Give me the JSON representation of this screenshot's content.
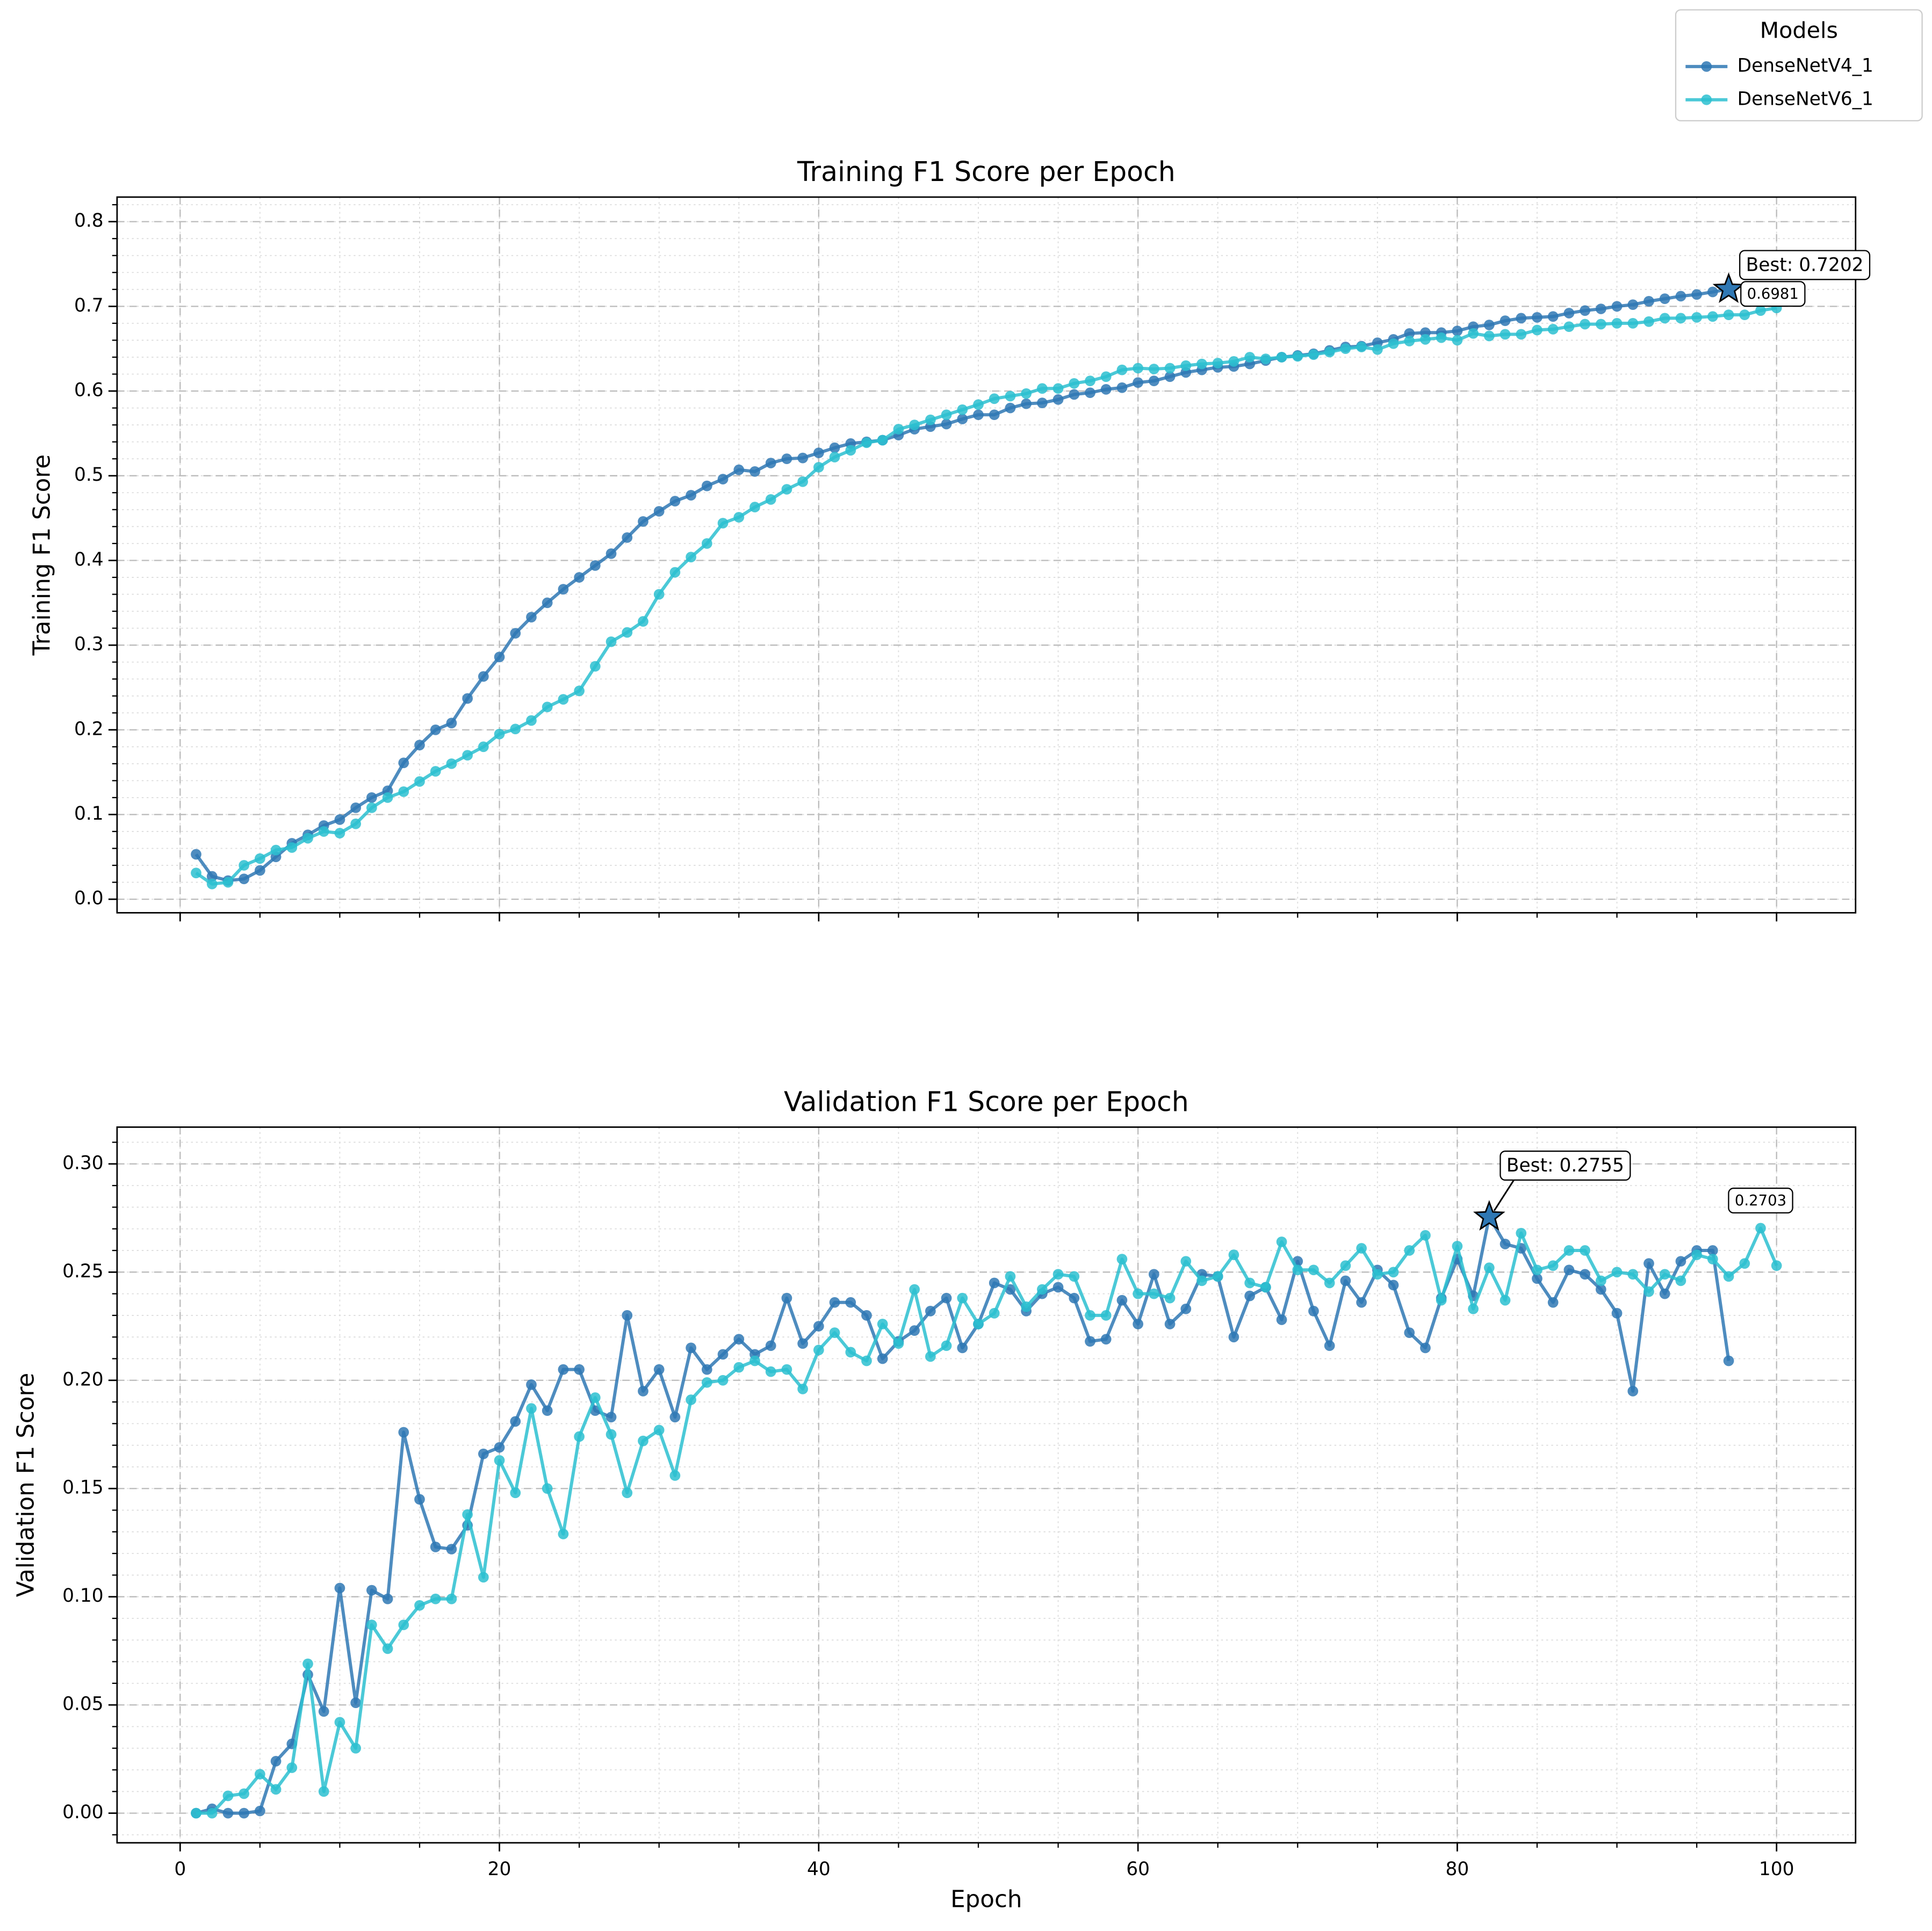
{
  "chart_data": [
    {
      "type": "line",
      "title": "Training F1 Score per Epoch",
      "ylabel": "Training F1 Score",
      "legend_title": "Models",
      "legend": "upper right",
      "show_xtick_labels": false,
      "xlim": [
        -3.95,
        104.95
      ],
      "xticks": [
        0,
        20,
        40,
        60,
        80,
        100
      ],
      "ylim": [
        -0.016,
        0.829
      ],
      "yticks": [
        {
          "value": 0,
          "label": "0.0"
        },
        0.1,
        0.2,
        0.3,
        0.4,
        0.5,
        0.6,
        0.7,
        0.8
      ],
      "grid": true,
      "minor_ticks": {
        "x": 5,
        "y": 0.02
      },
      "x": [
        1,
        2,
        3,
        4,
        5,
        6,
        7,
        8,
        9,
        10,
        11,
        12,
        13,
        14,
        15,
        16,
        17,
        18,
        19,
        20,
        21,
        22,
        23,
        24,
        25,
        26,
        27,
        28,
        29,
        30,
        31,
        32,
        33,
        34,
        35,
        36,
        37,
        38,
        39,
        40,
        41,
        42,
        43,
        44,
        45,
        46,
        47,
        48,
        49,
        50,
        51,
        52,
        53,
        54,
        55,
        56,
        57,
        58,
        59,
        60,
        61,
        62,
        63,
        64,
        65,
        66,
        67,
        68,
        69,
        70,
        71,
        72,
        73,
        74,
        75,
        76,
        77,
        78,
        79,
        80,
        81,
        82,
        83,
        84,
        85,
        86,
        87,
        88,
        89,
        90,
        91,
        92,
        93,
        94,
        95,
        96,
        97,
        98,
        99,
        100
      ],
      "series": [
        {
          "name": "DenseNetV4_1",
          "color": "#2f78b4",
          "values": [
            0.053,
            0.027,
            0.022,
            0.024,
            0.034,
            0.05,
            0.066,
            0.076,
            0.087,
            0.094,
            0.108,
            0.12,
            0.128,
            0.161,
            0.182,
            0.2,
            0.208,
            0.237,
            0.263,
            0.286,
            0.314,
            0.333,
            0.35,
            0.366,
            0.38,
            0.394,
            0.408,
            0.427,
            0.446,
            0.458,
            0.47,
            0.477,
            0.488,
            0.496,
            0.507,
            0.505,
            0.515,
            0.52,
            0.521,
            0.527,
            0.533,
            0.538,
            0.54,
            0.542,
            0.548,
            0.555,
            0.558,
            0.561,
            0.567,
            0.572,
            0.572,
            0.58,
            0.585,
            0.586,
            0.59,
            0.596,
            0.598,
            0.602,
            0.604,
            0.61,
            0.612,
            0.617,
            0.622,
            0.625,
            0.628,
            0.629,
            0.632,
            0.636,
            0.64,
            0.642,
            0.644,
            0.648,
            0.652,
            0.653,
            0.657,
            0.661,
            0.668,
            0.669,
            0.669,
            0.671,
            0.676,
            0.678,
            0.683,
            0.686,
            0.687,
            0.688,
            0.692,
            0.695,
            0.697,
            0.7,
            0.702,
            0.706,
            0.709,
            0.712,
            0.714,
            0.717,
            0.7202,
            null,
            null,
            null
          ]
        },
        {
          "name": "DenseNetV6_1",
          "color": "#2cbfd0",
          "values": [
            0.031,
            0.018,
            0.02,
            0.04,
            0.048,
            0.058,
            0.061,
            0.072,
            0.08,
            0.078,
            0.089,
            0.108,
            0.12,
            0.127,
            0.139,
            0.151,
            0.16,
            0.17,
            0.18,
            0.195,
            0.201,
            0.211,
            0.227,
            0.236,
            0.246,
            0.275,
            0.304,
            0.315,
            0.328,
            0.36,
            0.386,
            0.404,
            0.42,
            0.444,
            0.451,
            0.463,
            0.472,
            0.484,
            0.493,
            0.51,
            0.522,
            0.53,
            0.539,
            0.542,
            0.555,
            0.56,
            0.566,
            0.572,
            0.578,
            0.584,
            0.591,
            0.594,
            0.597,
            0.603,
            0.603,
            0.609,
            0.612,
            0.617,
            0.625,
            0.627,
            0.626,
            0.627,
            0.63,
            0.632,
            0.633,
            0.635,
            0.64,
            0.638,
            0.64,
            0.641,
            0.643,
            0.646,
            0.65,
            0.652,
            0.649,
            0.656,
            0.659,
            0.661,
            0.663,
            0.66,
            0.668,
            0.665,
            0.667,
            0.667,
            0.672,
            0.673,
            0.676,
            0.679,
            0.679,
            0.68,
            0.68,
            0.682,
            0.686,
            0.686,
            0.687,
            0.688,
            0.69,
            0.69,
            0.695,
            0.6981
          ]
        }
      ],
      "annotations": [
        {
          "text": "Best: 0.7202",
          "x": 97,
          "y": 0.7202,
          "marker": "star",
          "color": "#2f78b4"
        },
        {
          "text": "0.6981",
          "x": 100,
          "y": 0.6981
        }
      ]
    },
    {
      "type": "line",
      "title": "Validation F1 Score per Epoch",
      "xlabel": "Epoch",
      "ylabel": "Validation F1 Score",
      "xlim": [
        -3.95,
        104.95
      ],
      "xticks": [
        0,
        20,
        40,
        60,
        80,
        100
      ],
      "ylim": [
        -0.0137,
        0.317
      ],
      "yticks": [
        {
          "value": 0,
          "label": "0.00"
        },
        0.05,
        {
          "value": 0.1,
          "label": "0.10"
        },
        0.15,
        {
          "value": 0.2,
          "label": "0.20"
        },
        0.25,
        {
          "value": 0.3,
          "label": "0.30"
        }
      ],
      "grid": true,
      "minor_ticks": {
        "x": 5,
        "y": 0.01
      },
      "x": [
        1,
        2,
        3,
        4,
        5,
        6,
        7,
        8,
        9,
        10,
        11,
        12,
        13,
        14,
        15,
        16,
        17,
        18,
        19,
        20,
        21,
        22,
        23,
        24,
        25,
        26,
        27,
        28,
        29,
        30,
        31,
        32,
        33,
        34,
        35,
        36,
        37,
        38,
        39,
        40,
        41,
        42,
        43,
        44,
        45,
        46,
        47,
        48,
        49,
        50,
        51,
        52,
        53,
        54,
        55,
        56,
        57,
        58,
        59,
        60,
        61,
        62,
        63,
        64,
        65,
        66,
        67,
        68,
        69,
        70,
        71,
        72,
        73,
        74,
        75,
        76,
        77,
        78,
        79,
        80,
        81,
        82,
        83,
        84,
        85,
        86,
        87,
        88,
        89,
        90,
        91,
        92,
        93,
        94,
        95,
        96,
        97,
        98,
        99,
        100
      ],
      "series": [
        {
          "name": "DenseNetV4_1",
          "color": "#2f78b4",
          "values": [
            0,
            0.002,
            0,
            0,
            0.001,
            0.024,
            0.032,
            0.064,
            0.047,
            0.104,
            0.051,
            0.103,
            0.099,
            0.176,
            0.145,
            0.123,
            0.122,
            0.133,
            0.166,
            0.169,
            0.181,
            0.198,
            0.186,
            0.205,
            0.205,
            0.186,
            0.183,
            0.23,
            0.195,
            0.205,
            0.183,
            0.215,
            0.205,
            0.212,
            0.219,
            0.212,
            0.216,
            0.238,
            0.217,
            0.225,
            0.236,
            0.236,
            0.23,
            0.21,
            0.218,
            0.223,
            0.232,
            0.238,
            0.215,
            0.226,
            0.245,
            0.242,
            0.232,
            0.24,
            0.243,
            0.238,
            0.218,
            0.219,
            0.237,
            0.226,
            0.249,
            0.226,
            0.233,
            0.249,
            0.248,
            0.22,
            0.239,
            0.243,
            0.228,
            0.255,
            0.232,
            0.216,
            0.246,
            0.236,
            0.251,
            0.244,
            0.222,
            0.215,
            0.238,
            0.256,
            0.239,
            0.2755,
            0.263,
            0.261,
            0.247,
            0.236,
            0.251,
            0.249,
            0.242,
            0.231,
            0.195,
            0.254,
            0.24,
            0.255,
            0.26,
            0.26,
            0.209,
            null,
            null,
            null
          ]
        },
        {
          "name": "DenseNetV6_1",
          "color": "#2cbfd0",
          "values": [
            0,
            0,
            0.008,
            0.009,
            0.018,
            0.011,
            0.021,
            0.069,
            0.01,
            0.042,
            0.03,
            0.087,
            0.076,
            0.087,
            0.096,
            0.099,
            0.099,
            0.138,
            0.109,
            0.163,
            0.148,
            0.187,
            0.15,
            0.129,
            0.174,
            0.192,
            0.175,
            0.148,
            0.172,
            0.177,
            0.156,
            0.191,
            0.199,
            0.2,
            0.206,
            0.209,
            0.204,
            0.205,
            0.196,
            0.214,
            0.222,
            0.213,
            0.209,
            0.226,
            0.217,
            0.242,
            0.211,
            0.216,
            0.238,
            0.226,
            0.231,
            0.248,
            0.234,
            0.242,
            0.249,
            0.248,
            0.23,
            0.23,
            0.256,
            0.24,
            0.24,
            0.238,
            0.255,
            0.246,
            0.248,
            0.258,
            0.245,
            0.243,
            0.264,
            0.251,
            0.251,
            0.245,
            0.253,
            0.261,
            0.249,
            0.25,
            0.26,
            0.267,
            0.237,
            0.262,
            0.233,
            0.252,
            0.237,
            0.268,
            0.251,
            0.253,
            0.26,
            0.26,
            0.246,
            0.25,
            0.249,
            0.241,
            0.249,
            0.246,
            0.258,
            0.256,
            0.248,
            0.254,
            0.2703,
            0.253
          ]
        }
      ],
      "annotations": [
        {
          "text": "Best: 0.2755",
          "x": 82,
          "y": 0.2755,
          "marker": "star",
          "color": "#2f78b4"
        },
        {
          "text": "0.2703",
          "x": 99,
          "y": 0.2703
        }
      ]
    }
  ]
}
